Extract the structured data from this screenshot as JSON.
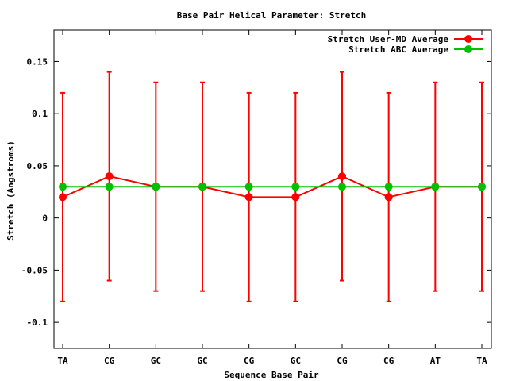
{
  "chart_data": {
    "type": "line",
    "title": "Base Pair Helical Parameter: Stretch",
    "xlabel": "Sequence Base Pair",
    "ylabel": "Stretch (Angstroms)",
    "categories": [
      "TA",
      "CG",
      "GC",
      "GC",
      "CG",
      "GC",
      "CG",
      "CG",
      "AT",
      "TA"
    ],
    "ylim": [
      -0.125,
      0.18
    ],
    "yticks": [
      -0.1,
      -0.05,
      0,
      0.05,
      0.1,
      0.15
    ],
    "ytick_labels": [
      "-0.1",
      "-0.05",
      "0",
      "0.05",
      "0.1",
      "0.15"
    ],
    "grid": false,
    "legend_position": "top-right",
    "series": [
      {
        "name": "Stretch User-MD Average",
        "color": "#ff0000",
        "values": [
          0.02,
          0.04,
          0.03,
          0.03,
          0.02,
          0.02,
          0.04,
          0.02,
          0.03,
          0.03
        ],
        "error_low": [
          -0.08,
          -0.06,
          -0.07,
          -0.07,
          -0.08,
          -0.08,
          -0.06,
          -0.08,
          -0.07,
          -0.07
        ],
        "error_high": [
          0.12,
          0.14,
          0.13,
          0.13,
          0.12,
          0.12,
          0.14,
          0.12,
          0.13,
          0.13
        ]
      },
      {
        "name": "Stretch ABC Average",
        "color": "#00c000",
        "values": [
          0.03,
          0.03,
          0.03,
          0.03,
          0.03,
          0.03,
          0.03,
          0.03,
          0.03,
          0.03
        ]
      }
    ]
  }
}
